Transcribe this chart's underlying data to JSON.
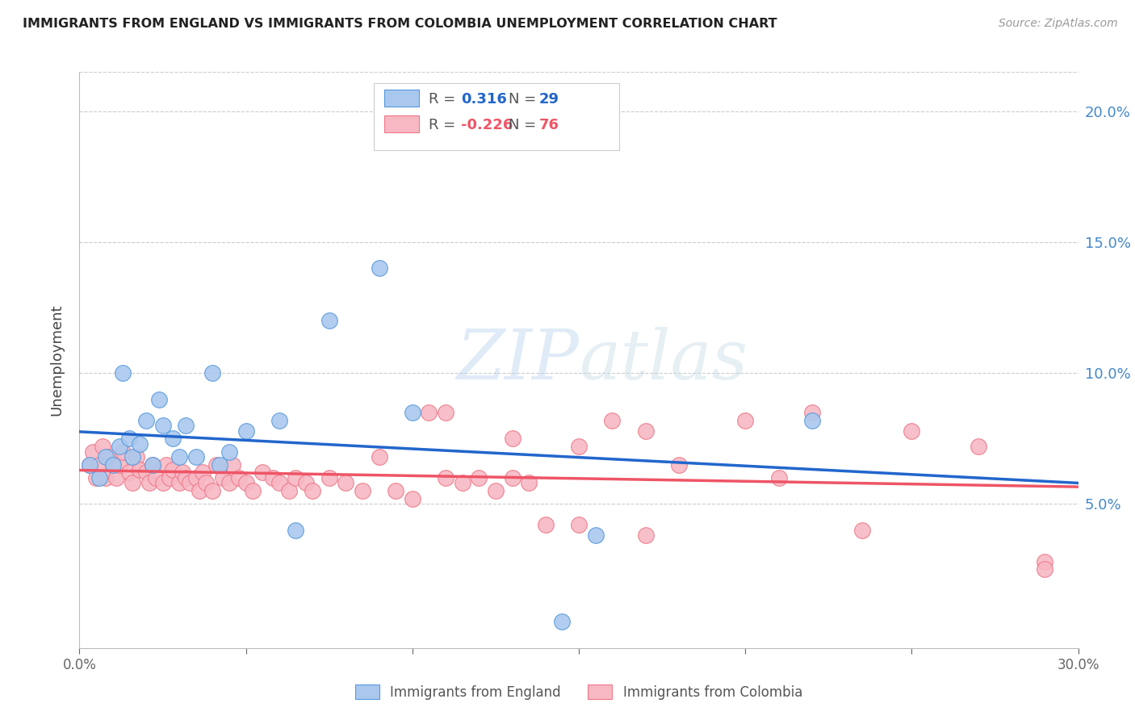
{
  "title": "IMMIGRANTS FROM ENGLAND VS IMMIGRANTS FROM COLOMBIA UNEMPLOYMENT CORRELATION CHART",
  "source": "Source: ZipAtlas.com",
  "ylabel": "Unemployment",
  "ytick_labels": [
    "5.0%",
    "10.0%",
    "15.0%",
    "20.0%"
  ],
  "ytick_values": [
    0.05,
    0.1,
    0.15,
    0.2
  ],
  "xlim": [
    0.0,
    0.3
  ],
  "ylim": [
    -0.005,
    0.215
  ],
  "watermark_zip": "ZIP",
  "watermark_atlas": "atlas",
  "legend_england_r": "0.316",
  "legend_england_n": "29",
  "legend_colombia_r": "-0.226",
  "legend_colombia_n": "76",
  "england_fill_color": "#aac8ee",
  "colombia_fill_color": "#f7b8c4",
  "england_edge_color": "#5599dd",
  "colombia_edge_color": "#ee7788",
  "england_line_color": "#2266cc",
  "colombia_line_color": "#ee5566",
  "dashed_line_color": "#99bbdd",
  "right_axis_color": "#4488cc",
  "england_scatter_x": [
    0.003,
    0.006,
    0.008,
    0.01,
    0.012,
    0.013,
    0.015,
    0.016,
    0.018,
    0.02,
    0.022,
    0.024,
    0.025,
    0.028,
    0.03,
    0.032,
    0.035,
    0.04,
    0.042,
    0.045,
    0.05,
    0.06,
    0.065,
    0.075,
    0.09,
    0.1,
    0.145,
    0.155,
    0.22
  ],
  "england_scatter_y": [
    0.065,
    0.06,
    0.068,
    0.065,
    0.072,
    0.1,
    0.075,
    0.068,
    0.073,
    0.082,
    0.065,
    0.09,
    0.08,
    0.075,
    0.068,
    0.08,
    0.068,
    0.1,
    0.065,
    0.07,
    0.078,
    0.082,
    0.04,
    0.12,
    0.14,
    0.085,
    0.005,
    0.038,
    0.082
  ],
  "colombia_scatter_x": [
    0.003,
    0.004,
    0.005,
    0.006,
    0.007,
    0.008,
    0.009,
    0.01,
    0.011,
    0.012,
    0.013,
    0.015,
    0.016,
    0.017,
    0.018,
    0.02,
    0.021,
    0.022,
    0.023,
    0.025,
    0.026,
    0.027,
    0.028,
    0.03,
    0.031,
    0.032,
    0.033,
    0.035,
    0.036,
    0.037,
    0.038,
    0.04,
    0.041,
    0.043,
    0.045,
    0.046,
    0.048,
    0.05,
    0.052,
    0.055,
    0.058,
    0.06,
    0.063,
    0.065,
    0.068,
    0.07,
    0.075,
    0.08,
    0.085,
    0.09,
    0.095,
    0.1,
    0.105,
    0.11,
    0.115,
    0.12,
    0.125,
    0.13,
    0.135,
    0.14,
    0.15,
    0.16,
    0.17,
    0.18,
    0.2,
    0.21,
    0.22,
    0.235,
    0.25,
    0.27,
    0.29,
    0.11,
    0.13,
    0.15,
    0.17,
    0.29
  ],
  "colombia_scatter_y": [
    0.065,
    0.07,
    0.06,
    0.065,
    0.072,
    0.06,
    0.068,
    0.065,
    0.06,
    0.065,
    0.07,
    0.062,
    0.058,
    0.068,
    0.063,
    0.062,
    0.058,
    0.065,
    0.06,
    0.058,
    0.065,
    0.06,
    0.063,
    0.058,
    0.062,
    0.06,
    0.058,
    0.06,
    0.055,
    0.062,
    0.058,
    0.055,
    0.065,
    0.06,
    0.058,
    0.065,
    0.06,
    0.058,
    0.055,
    0.062,
    0.06,
    0.058,
    0.055,
    0.06,
    0.058,
    0.055,
    0.06,
    0.058,
    0.055,
    0.068,
    0.055,
    0.052,
    0.085,
    0.06,
    0.058,
    0.06,
    0.055,
    0.06,
    0.058,
    0.042,
    0.042,
    0.082,
    0.078,
    0.065,
    0.082,
    0.06,
    0.085,
    0.04,
    0.078,
    0.072,
    0.028,
    0.085,
    0.075,
    0.072,
    0.038,
    0.025
  ]
}
